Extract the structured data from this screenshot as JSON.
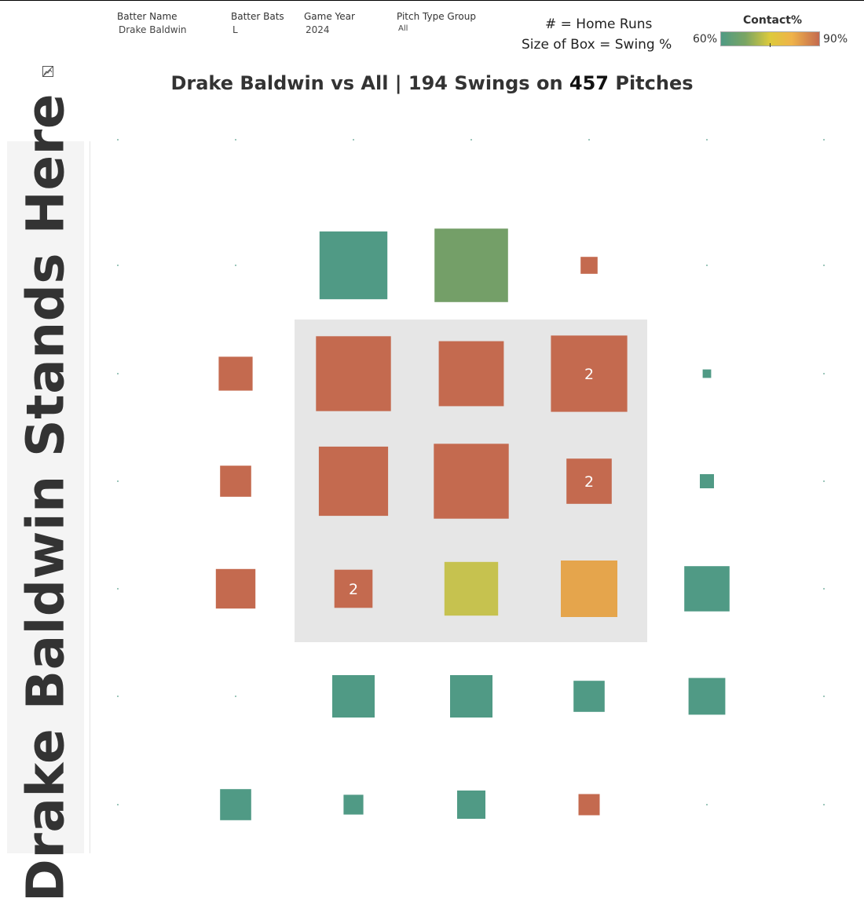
{
  "filters": [
    {
      "label": "Batter Name",
      "value": "Drake Baldwin"
    },
    {
      "label": "Batter Bats",
      "value": "L"
    },
    {
      "label": "Game Year",
      "value": "2024"
    },
    {
      "label": "Pitch Type Group",
      "value": "All"
    }
  ],
  "legend": {
    "hr_note": "# = Home Runs",
    "size_note": "Size of Box = Swing %",
    "contact_title": "Contact%",
    "contact_min": "60%",
    "contact_max": "90%",
    "colors": {
      "low": "#4f9a84",
      "mid": "#ddca3c",
      "high": "#c46a4f"
    }
  },
  "title": {
    "prefix": "Drake Baldwin vs All |",
    "swings": "194 Swings on",
    "pitches": "457",
    "suffix": "Pitches"
  },
  "side_label": "Drake Baldwin Stands Here",
  "chart_data": {
    "type": "heatmap",
    "title": "Drake Baldwin vs All | 194 Swings on 457 Pitches",
    "columns": 7,
    "rows": 7,
    "strike_zone": {
      "col_start": 2,
      "col_end": 4,
      "row_start": 2,
      "row_end": 4
    },
    "size_measure": "Swing %",
    "color_measure": "Contact%",
    "color_range": [
      60,
      90
    ],
    "label_measure": "Home Runs",
    "cells": [
      {
        "row": 1,
        "col": 2,
        "swing_pct": 48,
        "color": "#509a85",
        "hr": null
      },
      {
        "row": 1,
        "col": 3,
        "swing_pct": 52,
        "color": "#749f68",
        "hr": null
      },
      {
        "row": 1,
        "col": 4,
        "swing_pct": 12,
        "color": "#c46a4f",
        "hr": null
      },
      {
        "row": 2,
        "col": 1,
        "swing_pct": 24,
        "color": "#c46a4f",
        "hr": null
      },
      {
        "row": 2,
        "col": 2,
        "swing_pct": 53,
        "color": "#c46a4f",
        "hr": null
      },
      {
        "row": 2,
        "col": 3,
        "swing_pct": 46,
        "color": "#c46a4f",
        "hr": null
      },
      {
        "row": 2,
        "col": 4,
        "swing_pct": 54,
        "color": "#c46a4f",
        "hr": "2"
      },
      {
        "row": 2,
        "col": 5,
        "swing_pct": 6,
        "color": "#509a85",
        "hr": null
      },
      {
        "row": 3,
        "col": 1,
        "swing_pct": 22,
        "color": "#c46a4f",
        "hr": null
      },
      {
        "row": 3,
        "col": 2,
        "swing_pct": 49,
        "color": "#c46a4f",
        "hr": null
      },
      {
        "row": 3,
        "col": 3,
        "swing_pct": 53,
        "color": "#c46a4f",
        "hr": null
      },
      {
        "row": 3,
        "col": 4,
        "swing_pct": 32,
        "color": "#c46a4f",
        "hr": "2"
      },
      {
        "row": 3,
        "col": 5,
        "swing_pct": 10,
        "color": "#509a85",
        "hr": null
      },
      {
        "row": 4,
        "col": 1,
        "swing_pct": 28,
        "color": "#c46a4f",
        "hr": null
      },
      {
        "row": 4,
        "col": 2,
        "swing_pct": 27,
        "color": "#c46a4f",
        "hr": "2"
      },
      {
        "row": 4,
        "col": 3,
        "swing_pct": 38,
        "color": "#c6c24f",
        "hr": null
      },
      {
        "row": 4,
        "col": 4,
        "swing_pct": 40,
        "color": "#e5a54c",
        "hr": null
      },
      {
        "row": 4,
        "col": 5,
        "swing_pct": 32,
        "color": "#509a85",
        "hr": null
      },
      {
        "row": 5,
        "col": 2,
        "swing_pct": 30,
        "color": "#509a85",
        "hr": null
      },
      {
        "row": 5,
        "col": 3,
        "swing_pct": 30,
        "color": "#509a85",
        "hr": null
      },
      {
        "row": 5,
        "col": 4,
        "swing_pct": 22,
        "color": "#509a85",
        "hr": null
      },
      {
        "row": 5,
        "col": 5,
        "swing_pct": 26,
        "color": "#509a85",
        "hr": null
      },
      {
        "row": 6,
        "col": 1,
        "swing_pct": 22,
        "color": "#509a85",
        "hr": null
      },
      {
        "row": 6,
        "col": 2,
        "swing_pct": 14,
        "color": "#509a85",
        "hr": null
      },
      {
        "row": 6,
        "col": 3,
        "swing_pct": 20,
        "color": "#509a85",
        "hr": null
      },
      {
        "row": 6,
        "col": 4,
        "swing_pct": 15,
        "color": "#c46a4f",
        "hr": null
      }
    ]
  }
}
